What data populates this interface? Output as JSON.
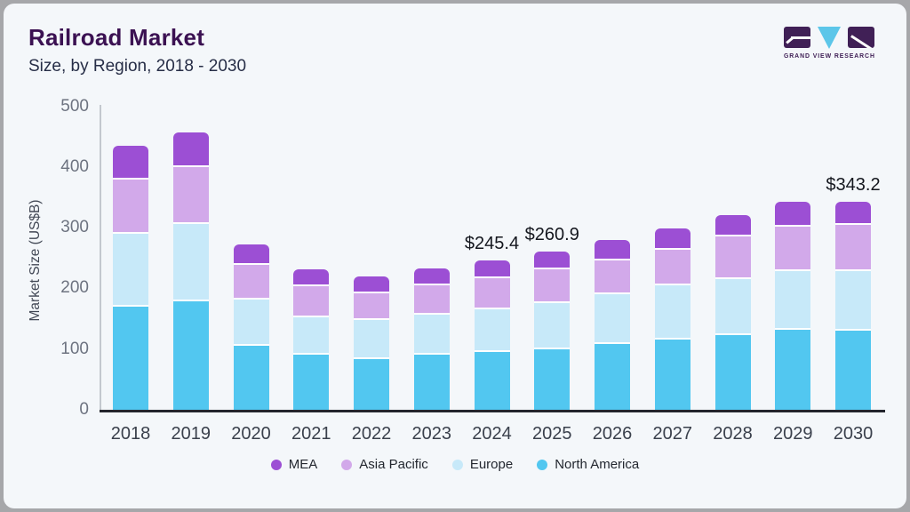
{
  "header": {
    "title": "Railroad Market",
    "subtitle": "Size, by Region, 2018 - 2030"
  },
  "logo": {
    "name": "grand-view-research-logo",
    "text": "GRAND VIEW RESEARCH",
    "block_color": "#402056",
    "triangle_color": "#5cc6e9"
  },
  "chart_data": {
    "type": "bar",
    "stacked": true,
    "title": "Railroad Market Size, by Region, 2018 - 2030",
    "xlabel": "",
    "ylabel": "Market Size (US$B)",
    "ylim": [
      0,
      500
    ],
    "yticks": [
      0,
      100,
      200,
      300,
      400,
      500
    ],
    "grid": false,
    "legend_position": "bottom",
    "categories": [
      "2018",
      "2019",
      "2020",
      "2021",
      "2022",
      "2023",
      "2024",
      "2025",
      "2026",
      "2027",
      "2028",
      "2029",
      "2030"
    ],
    "series": [
      {
        "name": "MEA",
        "color": "#9c4fd4",
        "values": [
          56,
          57,
          34,
          28,
          27,
          28,
          28.4,
          29.9,
          34,
          36,
          35,
          40,
          39.2
        ]
      },
      {
        "name": "Asia Pacific",
        "color": "#d2a9ea",
        "values": [
          89,
          94,
          56,
          51,
          44,
          49,
          52,
          55,
          55,
          58,
          70,
          73,
          76
        ]
      },
      {
        "name": "Europe",
        "color": "#c7e9f9",
        "values": [
          120,
          127,
          76,
          61,
          64,
          65,
          70,
          76,
          83,
          90,
          92,
          98,
          97
        ]
      },
      {
        "name": "North America",
        "color": "#52c7f0",
        "values": [
          170,
          179,
          106,
          91,
          84,
          91,
          95,
          100,
          108,
          115,
          123,
          131,
          131
        ]
      }
    ],
    "totals": [
      435,
      457,
      272,
      231,
      219,
      233,
      245.4,
      260.9,
      280,
      299,
      320,
      342,
      343.2
    ],
    "annotations": [
      {
        "category": "2024",
        "text": "$245.4"
      },
      {
        "category": "2025",
        "text": "$260.9"
      },
      {
        "category": "2030",
        "text": "$343.2"
      }
    ]
  }
}
